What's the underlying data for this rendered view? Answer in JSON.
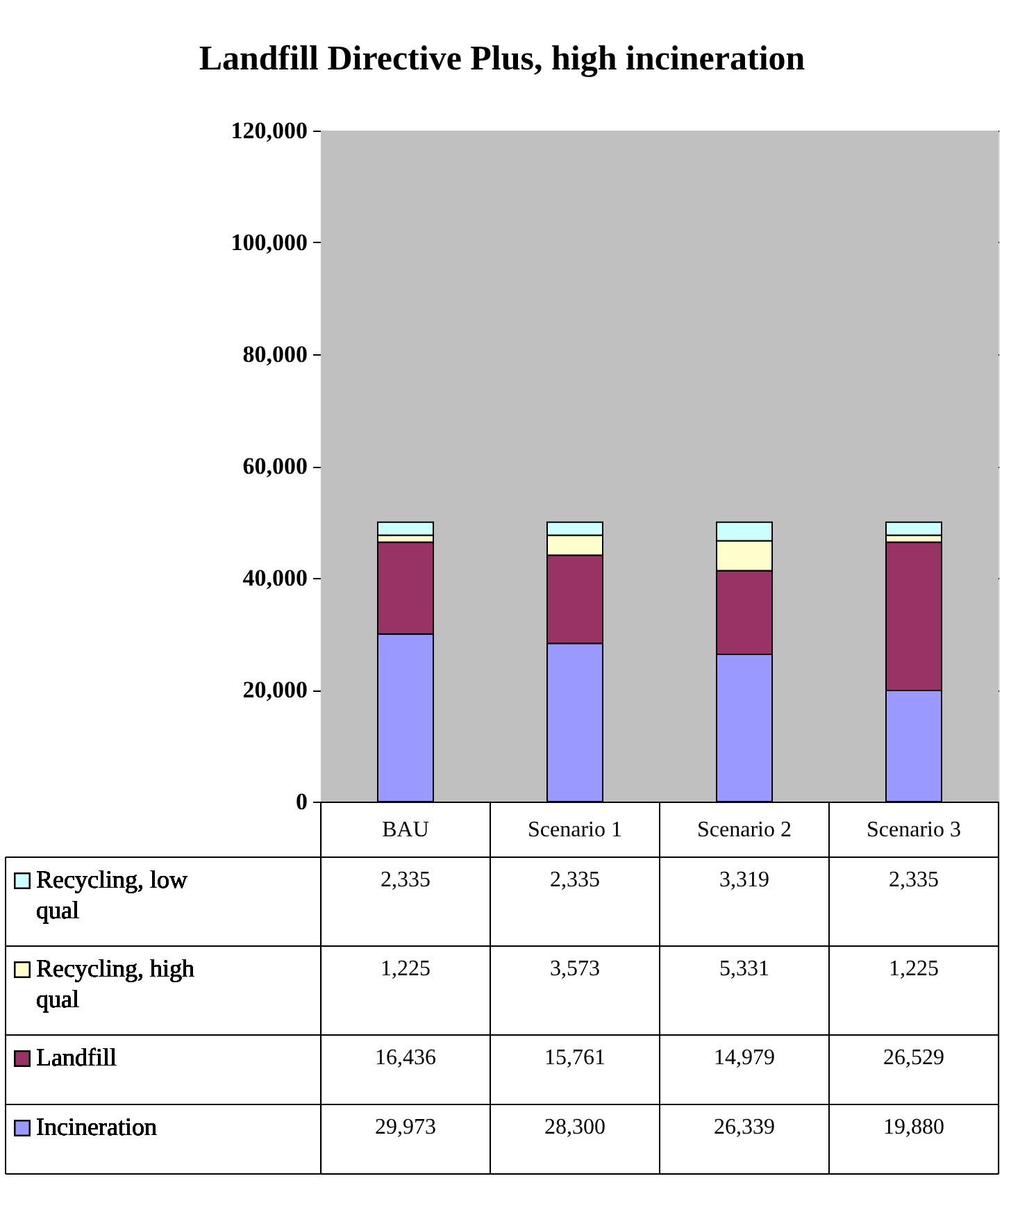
{
  "chart_data": {
    "type": "bar",
    "title": "Landfill Directive Plus, high incineration",
    "stacked": true,
    "legend": "bottom left",
    "grid": "y",
    "categories": [
      "BAU",
      "Scenario 1",
      "Scenario 2",
      "Scenario 3"
    ],
    "ylim": [
      0,
      120000
    ],
    "yticks": [
      {
        "value": 0,
        "label": "0"
      },
      {
        "value": 20000,
        "label": "20,000"
      },
      {
        "value": 40000,
        "label": "40,000"
      },
      {
        "value": 60000,
        "label": "60,000"
      },
      {
        "value": 80000,
        "label": "80,000"
      },
      {
        "value": 100000,
        "label": "100,000"
      },
      {
        "value": 120000,
        "label": "120,000"
      }
    ],
    "series": [
      {
        "name": "Incineration",
        "color": "#9999ff",
        "values": [
          29973,
          28300,
          26339,
          19880
        ],
        "value_labels": [
          "29,973",
          "28,300",
          "26,339",
          "19,880"
        ]
      },
      {
        "name": "Landfill",
        "color": "#993366",
        "values": [
          16436,
          15761,
          14979,
          26529
        ],
        "value_labels": [
          "16,436",
          "15,761",
          "14,979",
          "26,529"
        ]
      },
      {
        "name": "Recycling, high qual",
        "color": "#ffffcc",
        "values": [
          1225,
          3573,
          5331,
          1225
        ],
        "value_labels": [
          "1,225",
          "3,573",
          "5,331",
          "1,225"
        ]
      },
      {
        "name": "Recycling, low qual",
        "color": "#ccffff",
        "values": [
          2335,
          2335,
          3319,
          2335
        ],
        "value_labels": [
          "2,335",
          "2,335",
          "3,319",
          "2,335"
        ]
      }
    ]
  }
}
